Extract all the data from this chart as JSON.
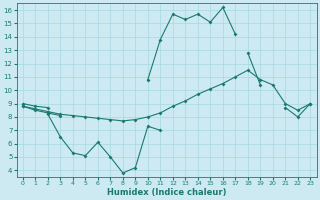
{
  "x": [
    0,
    1,
    2,
    3,
    4,
    5,
    6,
    7,
    8,
    9,
    10,
    11,
    12,
    13,
    14,
    15,
    16,
    17,
    18,
    19,
    20,
    21,
    22,
    23
  ],
  "line1": [
    9.0,
    8.8,
    8.7,
    null,
    null,
    null,
    null,
    null,
    null,
    null,
    10.8,
    13.8,
    15.7,
    15.3,
    15.7,
    15.1,
    16.2,
    14.2,
    null,
    null,
    null,
    null,
    null,
    null
  ],
  "line2": [
    8.8,
    8.5,
    8.3,
    8.1,
    null,
    null,
    null,
    null,
    null,
    null,
    null,
    null,
    null,
    null,
    null,
    null,
    null,
    null,
    12.8,
    10.4,
    null,
    8.7,
    8.0,
    9.0
  ],
  "line3": [
    8.8,
    8.6,
    8.4,
    8.2,
    8.1,
    8.0,
    7.9,
    7.8,
    7.7,
    7.8,
    8.0,
    8.3,
    8.8,
    9.2,
    9.7,
    10.1,
    10.5,
    11.0,
    11.5,
    10.8,
    10.4,
    9.0,
    8.5,
    9.0
  ],
  "line4": [
    null,
    null,
    8.2,
    6.5,
    5.3,
    5.1,
    6.1,
    5.0,
    3.8,
    4.2,
    7.3,
    7.0,
    null,
    null,
    null,
    null,
    null,
    null,
    null,
    null,
    null,
    null,
    null,
    null
  ],
  "line_color": "#1a7a6e",
  "bg_color": "#cdeaf2",
  "grid_color": "#a8d8e2",
  "ylabel_ticks": [
    4,
    5,
    6,
    7,
    8,
    9,
    10,
    11,
    12,
    13,
    14,
    15,
    16
  ],
  "xlabel": "Humidex (Indice chaleur)",
  "xlim": [
    -0.5,
    23.5
  ],
  "ylim": [
    3.5,
    16.5
  ],
  "figsize": [
    3.2,
    2.0
  ],
  "dpi": 100
}
